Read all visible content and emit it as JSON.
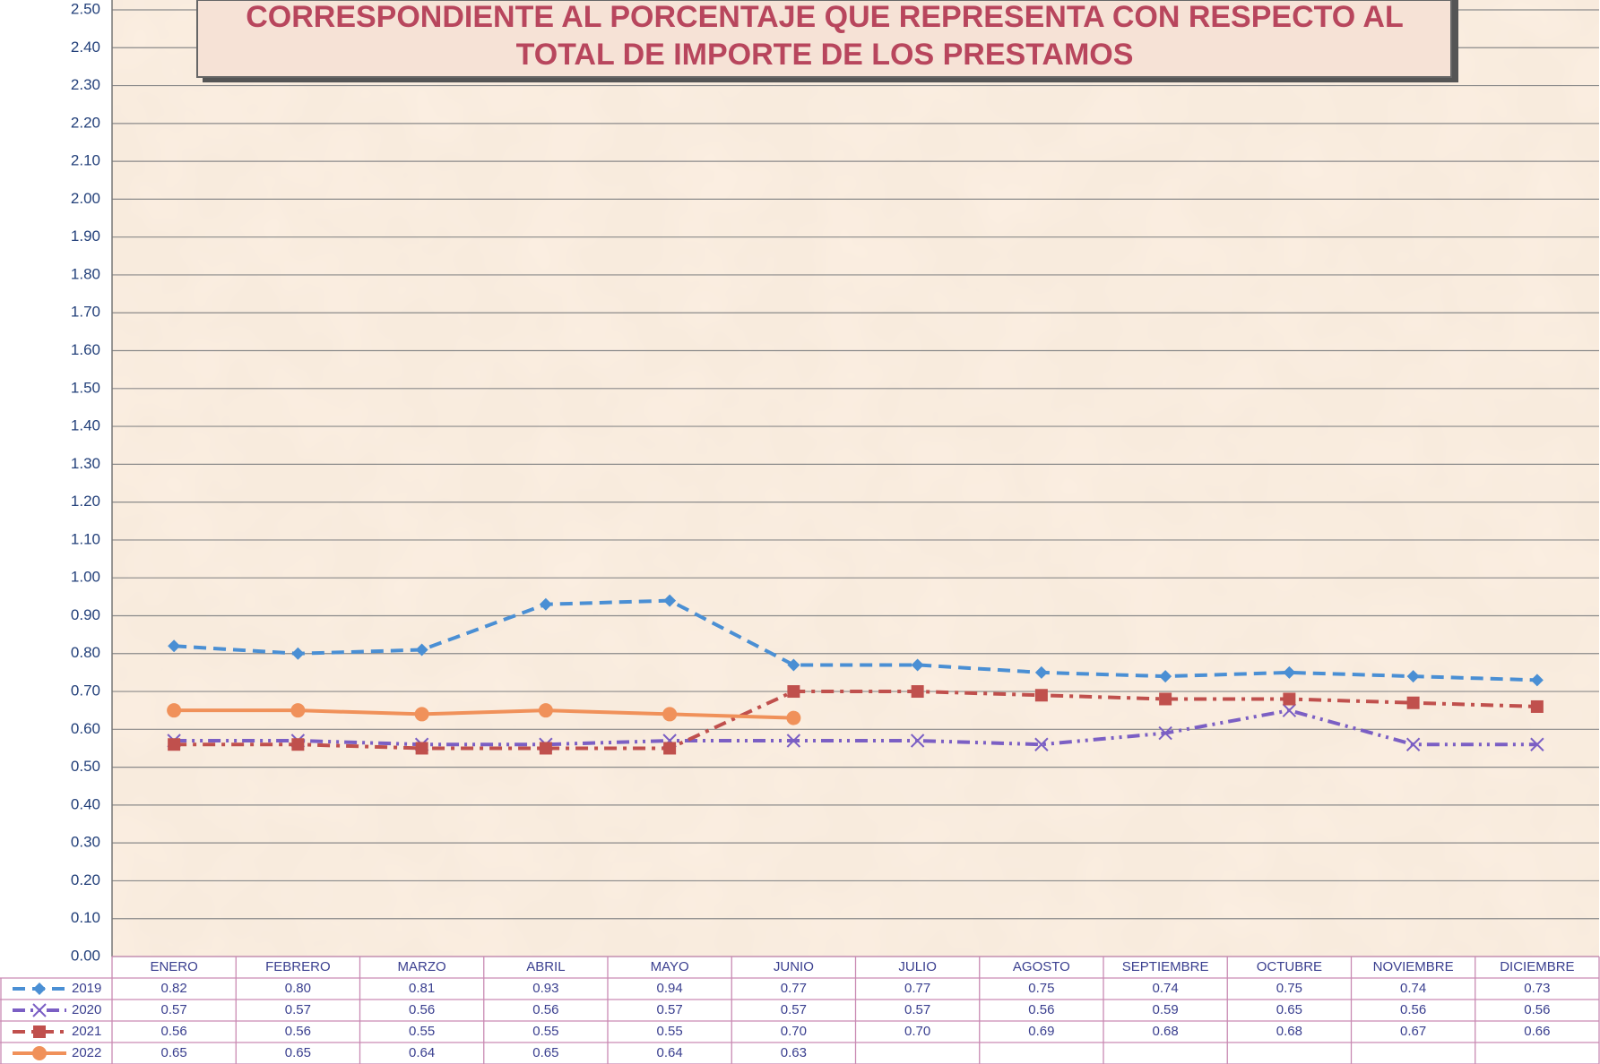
{
  "chart_data": {
    "type": "line",
    "title": [
      "CORRESPONDIENTE AL PORCENTAJE QUE REPRESENTA CON RESPECTO AL",
      "TOTAL DE IMPORTE DE LOS PRESTAMOS"
    ],
    "categories": [
      "ENERO",
      "FEBRERO",
      "MARZO",
      "ABRIL",
      "MAYO",
      "JUNIO",
      "JULIO",
      "AGOSTO",
      "SEPTIEMBRE",
      "OCTUBRE",
      "NOVIEMBRE",
      "DICIEMBRE"
    ],
    "series": [
      {
        "name": "2019",
        "color": "#4a8fd4",
        "marker": "diamond",
        "dash": "14 8",
        "values": [
          0.82,
          0.8,
          0.81,
          0.93,
          0.94,
          0.77,
          0.77,
          0.75,
          0.74,
          0.75,
          0.74,
          0.73
        ],
        "value_labels": [
          "0.82",
          "0.80",
          "0.81",
          "0.93",
          "0.94",
          "0.77",
          "0.77",
          "0.75",
          "0.74",
          "0.75",
          "0.74",
          "0.73"
        ]
      },
      {
        "name": "2020",
        "color": "#7b5fc4",
        "marker": "x",
        "dash": "14 6 3 6 3 6",
        "values": [
          0.57,
          0.57,
          0.56,
          0.56,
          0.57,
          0.57,
          0.57,
          0.56,
          0.59,
          0.65,
          0.56,
          0.56
        ],
        "value_labels": [
          "0.57",
          "0.57",
          "0.56",
          "0.56",
          "0.57",
          "0.57",
          "0.57",
          "0.56",
          "0.59",
          "0.65",
          "0.56",
          "0.56"
        ]
      },
      {
        "name": "2021",
        "color": "#c0504d",
        "marker": "square",
        "dash": "14 7 4 7",
        "values": [
          0.56,
          0.56,
          0.55,
          0.55,
          0.55,
          0.7,
          0.7,
          0.69,
          0.68,
          0.68,
          0.67,
          0.66
        ],
        "value_labels": [
          "0.56",
          "0.56",
          "0.55",
          "0.55",
          "0.55",
          "0.70",
          "0.70",
          "0.69",
          "0.68",
          "0.68",
          "0.67",
          "0.66"
        ]
      },
      {
        "name": "2022",
        "color": "#f0915a",
        "marker": "circle",
        "dash": "none",
        "values": [
          0.65,
          0.65,
          0.64,
          0.65,
          0.64,
          0.63,
          null,
          null,
          null,
          null,
          null,
          null
        ],
        "value_labels": [
          "0.65",
          "0.65",
          "0.64",
          "0.65",
          "0.64",
          "0.63",
          null,
          null,
          null,
          null,
          null,
          null
        ]
      }
    ],
    "ylim": [
      0,
      2.5
    ],
    "yticks": [
      {
        "value": 0,
        "label": "0.00"
      },
      {
        "value": 0.1,
        "label": "0.10"
      },
      {
        "value": 0.2,
        "label": "0.20"
      },
      {
        "value": 0.3,
        "label": "0.30"
      },
      {
        "value": 0.4,
        "label": "0.40"
      },
      {
        "value": 0.5,
        "label": "0.50"
      },
      {
        "value": 0.6,
        "label": "0.60"
      },
      {
        "value": 0.7,
        "label": "0.70"
      },
      {
        "value": 0.8,
        "label": "0.80"
      },
      {
        "value": 0.9,
        "label": "0.90"
      },
      {
        "value": 1.0,
        "label": "1.00"
      },
      {
        "value": 1.1,
        "label": "1.10"
      },
      {
        "value": 1.2,
        "label": "1.20"
      },
      {
        "value": 1.3,
        "label": "1.30"
      },
      {
        "value": 1.4,
        "label": "1.40"
      },
      {
        "value": 1.5,
        "label": "1.50"
      },
      {
        "value": 1.6,
        "label": "1.60"
      },
      {
        "value": 1.7,
        "label": "1.70"
      },
      {
        "value": 1.8,
        "label": "1.80"
      },
      {
        "value": 1.9,
        "label": "1.90"
      },
      {
        "value": 2.0,
        "label": "2.00"
      },
      {
        "value": 2.1,
        "label": "2.10"
      },
      {
        "value": 2.2,
        "label": "2.20"
      },
      {
        "value": 2.3,
        "label": "2.30"
      },
      {
        "value": 2.4,
        "label": "2.40"
      },
      {
        "value": 2.5,
        "label": "2.50"
      }
    ],
    "grid": true
  }
}
